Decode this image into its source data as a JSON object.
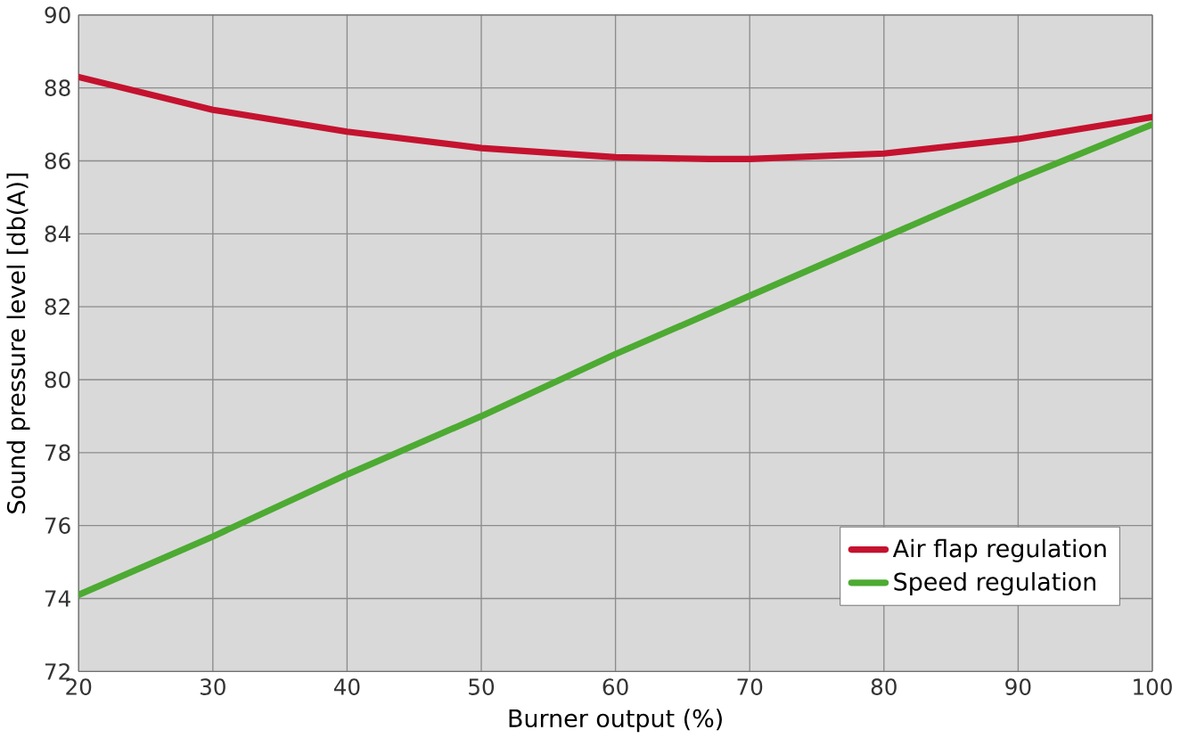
{
  "chart_data": {
    "type": "line",
    "xlabel": "Burner output (%)",
    "ylabel": "Sound pressure level [db(A)]",
    "xlim": [
      20,
      100
    ],
    "xticks": [
      20,
      30,
      40,
      50,
      60,
      70,
      80,
      90,
      100
    ],
    "ylim": [
      72,
      90
    ],
    "yticks": [
      72,
      74,
      76,
      78,
      80,
      82,
      84,
      86,
      88,
      90
    ],
    "grid": true,
    "legend": "bottom right",
    "line_style": "solid",
    "marker": "none",
    "series": [
      {
        "name": "Air flap regulation",
        "color": "#c4122f",
        "x": [
          20,
          30,
          40,
          50,
          60,
          67,
          70,
          80,
          90,
          100
        ],
        "values": [
          88.3,
          87.4,
          86.8,
          86.35,
          86.1,
          86.05,
          86.05,
          86.2,
          86.6,
          87.2
        ]
      },
      {
        "name": "Speed regulation",
        "color": "#4daa32",
        "x": [
          20,
          30,
          40,
          50,
          60,
          70,
          80,
          90,
          100
        ],
        "values": [
          74.1,
          75.7,
          77.4,
          79.0,
          80.7,
          82.3,
          83.9,
          85.5,
          87.0
        ]
      }
    ]
  }
}
